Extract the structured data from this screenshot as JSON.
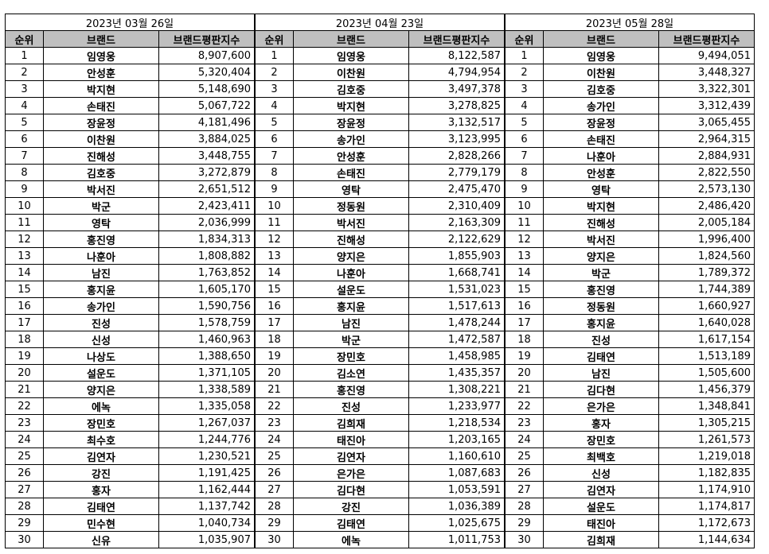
{
  "columns": {
    "rank": "순위",
    "brand": "브랜드",
    "index": "브랜드평판지수"
  },
  "tables": [
    {
      "date": "2023년 03월 26일",
      "rows": [
        [
          "1",
          "임영웅",
          "8,907,600"
        ],
        [
          "2",
          "안성훈",
          "5,320,404"
        ],
        [
          "3",
          "박지현",
          "5,148,690"
        ],
        [
          "4",
          "손태진",
          "5,067,722"
        ],
        [
          "5",
          "장윤정",
          "4,181,496"
        ],
        [
          "6",
          "이찬원",
          "3,884,025"
        ],
        [
          "7",
          "진해성",
          "3,448,755"
        ],
        [
          "8",
          "김호중",
          "3,272,879"
        ],
        [
          "9",
          "박서진",
          "2,651,512"
        ],
        [
          "10",
          "박군",
          "2,423,411"
        ],
        [
          "11",
          "영탁",
          "2,036,999"
        ],
        [
          "12",
          "홍진영",
          "1,834,313"
        ],
        [
          "13",
          "나훈아",
          "1,808,882"
        ],
        [
          "14",
          "남진",
          "1,763,852"
        ],
        [
          "15",
          "홍지윤",
          "1,605,170"
        ],
        [
          "16",
          "송가인",
          "1,590,756"
        ],
        [
          "17",
          "진성",
          "1,578,759"
        ],
        [
          "18",
          "신성",
          "1,460,963"
        ],
        [
          "19",
          "나상도",
          "1,388,650"
        ],
        [
          "20",
          "설운도",
          "1,371,105"
        ],
        [
          "21",
          "양지은",
          "1,338,589"
        ],
        [
          "22",
          "에녹",
          "1,335,058"
        ],
        [
          "23",
          "장민호",
          "1,267,037"
        ],
        [
          "24",
          "최수호",
          "1,244,776"
        ],
        [
          "25",
          "김연자",
          "1,230,521"
        ],
        [
          "26",
          "강진",
          "1,191,425"
        ],
        [
          "27",
          "홍자",
          "1,162,444"
        ],
        [
          "28",
          "김태연",
          "1,137,742"
        ],
        [
          "29",
          "민수현",
          "1,040,734"
        ],
        [
          "30",
          "신유",
          "1,035,907"
        ]
      ]
    },
    {
      "date": "2023년 04월 23일",
      "rows": [
        [
          "1",
          "임영웅",
          "8,122,587"
        ],
        [
          "2",
          "이찬원",
          "4,794,954"
        ],
        [
          "3",
          "김호중",
          "3,497,378"
        ],
        [
          "4",
          "박지현",
          "3,278,825"
        ],
        [
          "5",
          "장윤정",
          "3,132,517"
        ],
        [
          "6",
          "송가인",
          "3,123,995"
        ],
        [
          "7",
          "안성훈",
          "2,828,266"
        ],
        [
          "8",
          "손태진",
          "2,779,179"
        ],
        [
          "9",
          "영탁",
          "2,475,470"
        ],
        [
          "10",
          "정동원",
          "2,310,409"
        ],
        [
          "11",
          "박서진",
          "2,163,309"
        ],
        [
          "12",
          "진해성",
          "2,122,629"
        ],
        [
          "13",
          "양지은",
          "1,855,903"
        ],
        [
          "14",
          "나훈아",
          "1,668,741"
        ],
        [
          "15",
          "설운도",
          "1,531,023"
        ],
        [
          "16",
          "홍지윤",
          "1,517,613"
        ],
        [
          "17",
          "남진",
          "1,478,244"
        ],
        [
          "18",
          "박군",
          "1,472,587"
        ],
        [
          "19",
          "장민호",
          "1,458,985"
        ],
        [
          "20",
          "김소연",
          "1,435,357"
        ],
        [
          "21",
          "홍진영",
          "1,308,221"
        ],
        [
          "22",
          "진성",
          "1,233,977"
        ],
        [
          "23",
          "김희재",
          "1,218,534"
        ],
        [
          "24",
          "태진아",
          "1,203,165"
        ],
        [
          "25",
          "김연자",
          "1,160,610"
        ],
        [
          "26",
          "은가은",
          "1,087,683"
        ],
        [
          "27",
          "김다현",
          "1,053,591"
        ],
        [
          "28",
          "강진",
          "1,036,389"
        ],
        [
          "29",
          "김태연",
          "1,025,675"
        ],
        [
          "30",
          "에녹",
          "1,011,753"
        ]
      ]
    },
    {
      "date": "2023년 05월 28일",
      "rows": [
        [
          "1",
          "임영웅",
          "9,494,051"
        ],
        [
          "2",
          "이찬원",
          "3,448,327"
        ],
        [
          "3",
          "김호중",
          "3,322,301"
        ],
        [
          "4",
          "송가인",
          "3,312,439"
        ],
        [
          "5",
          "장윤정",
          "3,065,455"
        ],
        [
          "6",
          "손태진",
          "2,964,315"
        ],
        [
          "7",
          "나훈아",
          "2,884,931"
        ],
        [
          "8",
          "안성훈",
          "2,822,550"
        ],
        [
          "9",
          "영탁",
          "2,573,130"
        ],
        [
          "10",
          "박지현",
          "2,486,420"
        ],
        [
          "11",
          "진해성",
          "2,005,184"
        ],
        [
          "12",
          "박서진",
          "1,996,400"
        ],
        [
          "13",
          "양지은",
          "1,824,560"
        ],
        [
          "14",
          "박군",
          "1,789,372"
        ],
        [
          "15",
          "홍진영",
          "1,744,389"
        ],
        [
          "16",
          "정동원",
          "1,660,927"
        ],
        [
          "17",
          "홍지윤",
          "1,640,028"
        ],
        [
          "18",
          "진성",
          "1,617,154"
        ],
        [
          "19",
          "김태연",
          "1,513,189"
        ],
        [
          "20",
          "남진",
          "1,505,600"
        ],
        [
          "21",
          "김다현",
          "1,456,379"
        ],
        [
          "22",
          "은가은",
          "1,348,841"
        ],
        [
          "23",
          "홍자",
          "1,305,215"
        ],
        [
          "24",
          "장민호",
          "1,261,573"
        ],
        [
          "25",
          "최백호",
          "1,219,018"
        ],
        [
          "26",
          "신성",
          "1,182,835"
        ],
        [
          "27",
          "김연자",
          "1,174,910"
        ],
        [
          "28",
          "설운도",
          "1,174,817"
        ],
        [
          "29",
          "태진아",
          "1,172,673"
        ],
        [
          "30",
          "김희재",
          "1,144,634"
        ]
      ]
    }
  ]
}
